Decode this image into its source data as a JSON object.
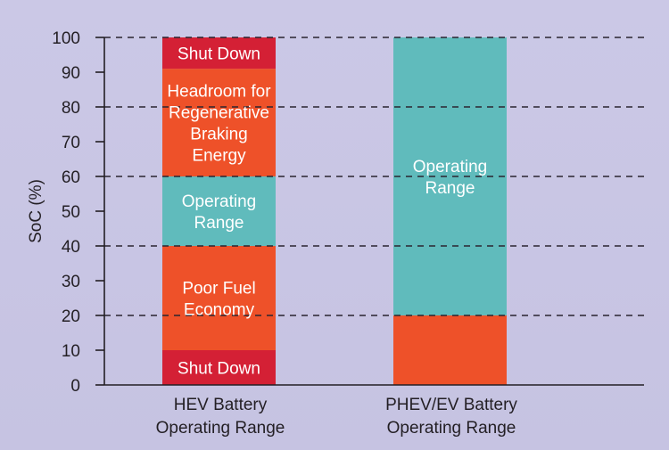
{
  "chart_data": {
    "type": "bar",
    "subtype": "stacked-range",
    "ylabel": "SoC (%)",
    "ylim": [
      0,
      100
    ],
    "yticks": [
      0,
      10,
      20,
      30,
      40,
      50,
      60,
      70,
      80,
      90,
      100
    ],
    "grid": "dashed-horizontal-at-even-ticks",
    "categories": [
      [
        "HEV Battery",
        "Operating Range"
      ],
      [
        "PHEV/EV Battery",
        "Operating Range"
      ]
    ],
    "series": [
      {
        "segments": [
          {
            "from": 0,
            "to": 10,
            "label": [
              "Shut Down"
            ],
            "color": "#d42035"
          },
          {
            "from": 10,
            "to": 40,
            "label": [
              "Poor Fuel",
              "Economy"
            ],
            "color": "#ee5129"
          },
          {
            "from": 40,
            "to": 60,
            "label": [
              "Operating",
              "Range"
            ],
            "color": "#60bbbc"
          },
          {
            "from": 60,
            "to": 91,
            "label": [
              "Headroom for",
              "Regenerative",
              "Braking",
              "Energy"
            ],
            "color": "#ee5129"
          },
          {
            "from": 91,
            "to": 100,
            "label": [
              "Shut Down"
            ],
            "color": "#d42035"
          }
        ]
      },
      {
        "segments": [
          {
            "from": 0,
            "to": 20,
            "label": [],
            "color": "#ee5129"
          },
          {
            "from": 20,
            "to": 100,
            "label": [
              "Operating",
              "Range"
            ],
            "color": "#60bbbc"
          }
        ]
      }
    ]
  }
}
